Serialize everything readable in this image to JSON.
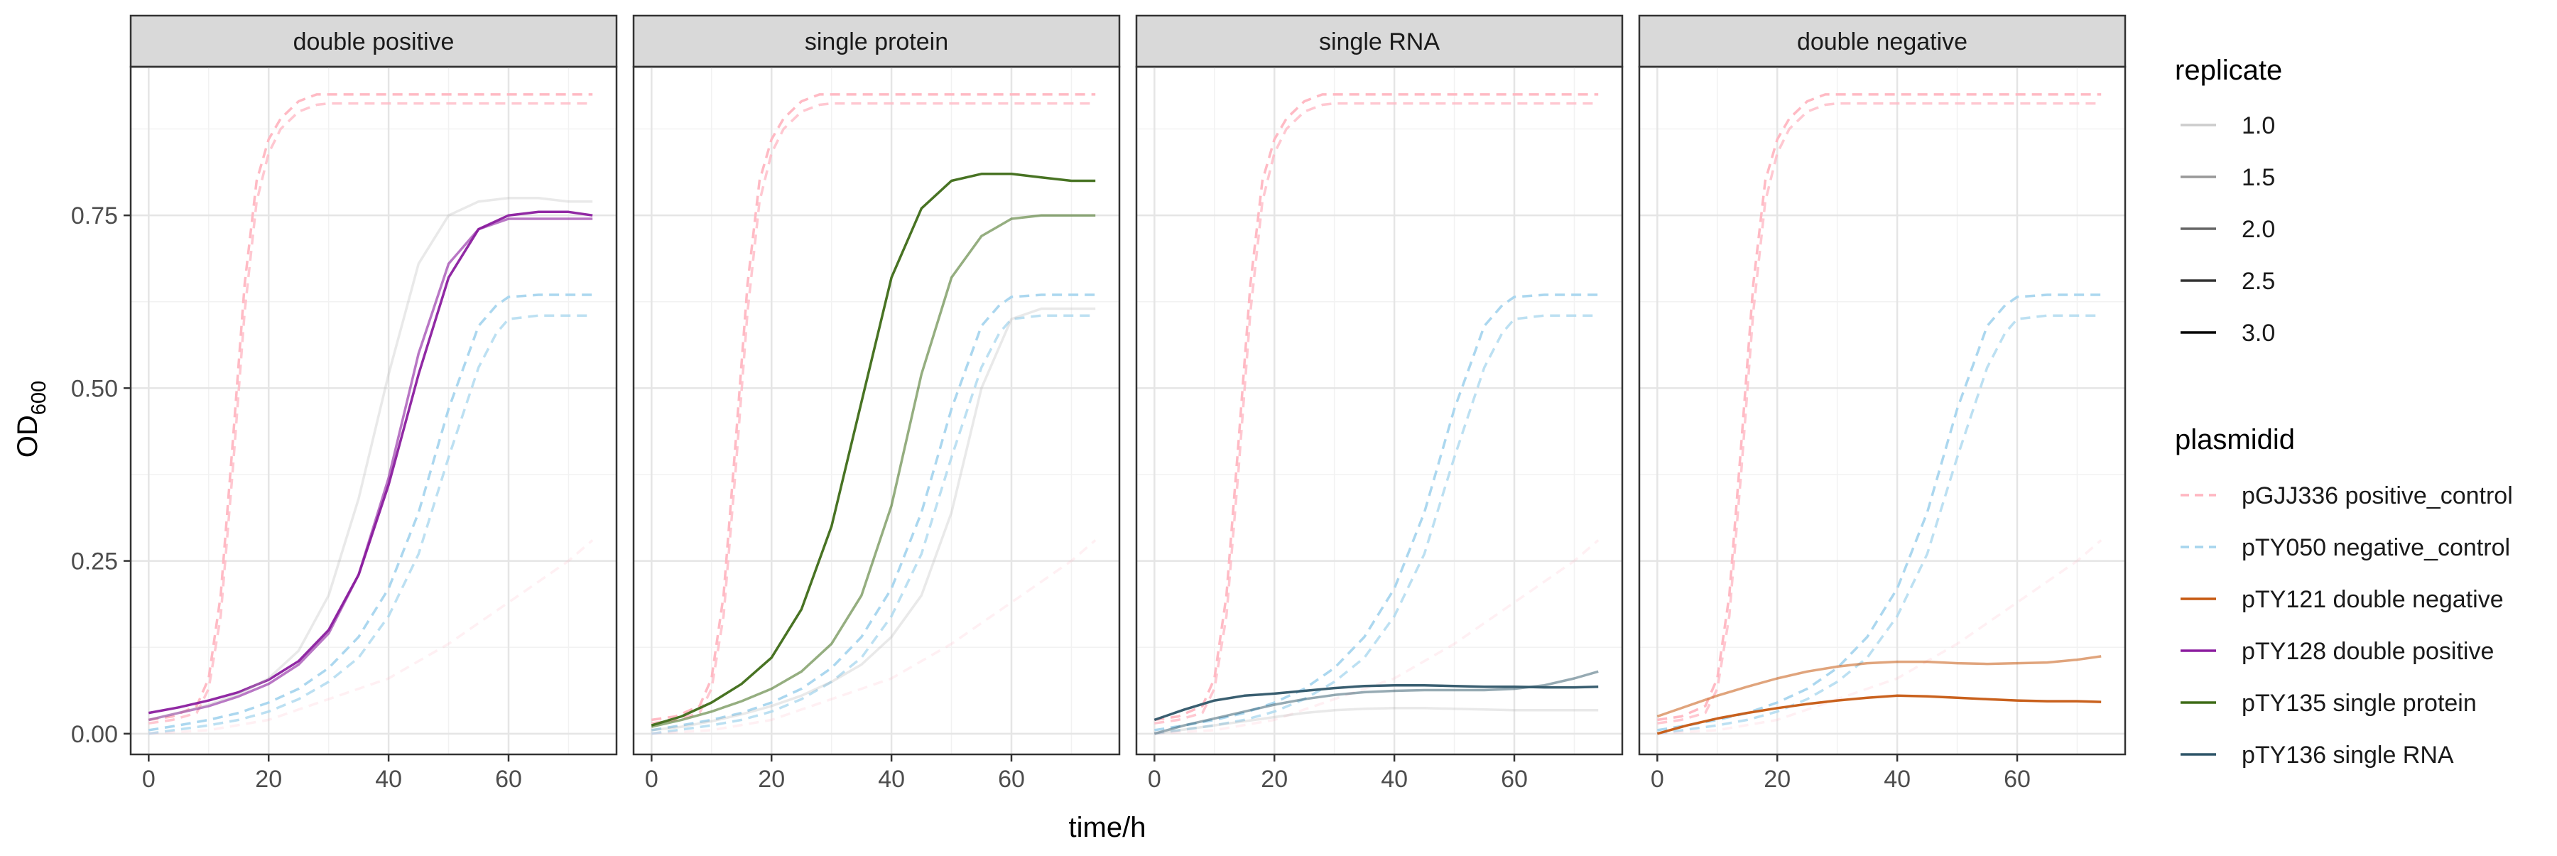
{
  "chart_data": {
    "type": "line",
    "xlabel": "time/h",
    "ylabel": "OD",
    "ylabel_subscript": "600",
    "xlim": [
      -3,
      78
    ],
    "ylim": [
      -0.03,
      0.965
    ],
    "x_ticks": [
      0,
      20,
      40,
      60
    ],
    "x_tick_labels": [
      "0",
      "20",
      "40",
      "60"
    ],
    "y_ticks": [
      0.0,
      0.25,
      0.5,
      0.75
    ],
    "y_tick_labels": [
      "0.00",
      "0.25",
      "0.50",
      "0.75"
    ],
    "grid": true,
    "legend_position": "right",
    "legends": [
      {
        "title": "replicate",
        "entries": [
          "1.0",
          "1.5",
          "2.0",
          "2.5",
          "3.0"
        ],
        "alphas": [
          0.2,
          0.4,
          0.6,
          0.8,
          1.0
        ]
      },
      {
        "title": "plasmidid",
        "entries": [
          {
            "label": "pGJJ336 positive_control",
            "color": "#FFB6C1",
            "dashed": true
          },
          {
            "label": "pTY050 negative_control",
            "color": "#A6D5EE",
            "dashed": true
          },
          {
            "label": "pTY121 double negative",
            "color": "#C65911",
            "dashed": false
          },
          {
            "label": "pTY128 double positive",
            "color": "#8B1D9F",
            "dashed": false
          },
          {
            "label": "pTY135 single protein",
            "color": "#3E6B17",
            "dashed": false
          },
          {
            "label": "pTY136 single RNA",
            "color": "#2E5568",
            "dashed": false
          }
        ]
      }
    ],
    "panels": [
      {
        "title": "double positive",
        "series": [
          {
            "name": "pTY128 double positive",
            "replicate": 3.0,
            "color": "#8B1D9F",
            "dash": false,
            "opacity": 0.95,
            "x": [
              0,
              5,
              10,
              15,
              20,
              25,
              30,
              35,
              40,
              45,
              50,
              55,
              60,
              65,
              70,
              74
            ],
            "y": [
              0.03,
              0.038,
              0.048,
              0.06,
              0.078,
              0.105,
              0.15,
              0.23,
              0.36,
              0.52,
              0.66,
              0.73,
              0.75,
              0.755,
              0.755,
              0.75
            ]
          },
          {
            "name": "pTY128 double positive",
            "replicate": 2.0,
            "color": "#8B1D9F",
            "dash": false,
            "opacity": 0.6,
            "x": [
              0,
              5,
              10,
              15,
              20,
              25,
              30,
              35,
              40,
              45,
              50,
              55,
              60,
              65,
              70,
              74
            ],
            "y": [
              0.02,
              0.03,
              0.04,
              0.054,
              0.072,
              0.1,
              0.145,
              0.23,
              0.37,
              0.55,
              0.68,
              0.73,
              0.745,
              0.745,
              0.745,
              0.745
            ]
          },
          {
            "name": "pTY128 double positive",
            "replicate": 1.0,
            "color": "#B5B5B5",
            "dash": false,
            "opacity": 0.3,
            "x": [
              0,
              5,
              10,
              15,
              20,
              25,
              30,
              35,
              40,
              45,
              50,
              55,
              60,
              65,
              70,
              74
            ],
            "y": [
              0.02,
              0.03,
              0.042,
              0.057,
              0.08,
              0.12,
              0.2,
              0.34,
              0.52,
              0.68,
              0.75,
              0.77,
              0.775,
              0.775,
              0.77,
              0.77
            ]
          }
        ]
      },
      {
        "title": "single protein",
        "series": [
          {
            "name": "pTY135 single protein",
            "replicate": 3.0,
            "color": "#3E6B17",
            "dash": false,
            "opacity": 0.95,
            "x": [
              0,
              5,
              10,
              15,
              20,
              25,
              30,
              35,
              40,
              45,
              50,
              55,
              60,
              65,
              70,
              74
            ],
            "y": [
              0.012,
              0.025,
              0.045,
              0.072,
              0.11,
              0.18,
              0.3,
              0.48,
              0.66,
              0.76,
              0.8,
              0.81,
              0.81,
              0.805,
              0.8,
              0.8
            ]
          },
          {
            "name": "pTY135 single protein",
            "replicate": 2.0,
            "color": "#3E6B17",
            "dash": false,
            "opacity": 0.55,
            "x": [
              0,
              5,
              10,
              15,
              20,
              25,
              30,
              35,
              40,
              45,
              50,
              55,
              60,
              65,
              70,
              74
            ],
            "y": [
              0.01,
              0.02,
              0.032,
              0.047,
              0.065,
              0.09,
              0.13,
              0.2,
              0.33,
              0.52,
              0.66,
              0.72,
              0.745,
              0.75,
              0.75,
              0.75
            ]
          },
          {
            "name": "pTY135 single protein",
            "replicate": 1.0,
            "color": "#B5B5B5",
            "dash": false,
            "opacity": 0.3,
            "x": [
              0,
              5,
              10,
              15,
              20,
              25,
              30,
              35,
              40,
              45,
              50,
              55,
              60,
              65,
              70,
              74
            ],
            "y": [
              0.005,
              0.01,
              0.018,
              0.028,
              0.04,
              0.055,
              0.075,
              0.1,
              0.14,
              0.2,
              0.32,
              0.5,
              0.6,
              0.615,
              0.615,
              0.615
            ]
          }
        ]
      },
      {
        "title": "single RNA",
        "series": [
          {
            "name": "pTY136 single RNA",
            "replicate": 3.0,
            "color": "#2E5568",
            "dash": false,
            "opacity": 0.95,
            "x": [
              0,
              5,
              10,
              15,
              20,
              25,
              30,
              35,
              40,
              45,
              50,
              55,
              60,
              65,
              70,
              74
            ],
            "y": [
              0.02,
              0.035,
              0.048,
              0.055,
              0.058,
              0.062,
              0.066,
              0.069,
              0.07,
              0.07,
              0.069,
              0.068,
              0.068,
              0.067,
              0.067,
              0.068
            ]
          },
          {
            "name": "pTY136 single RNA",
            "replicate": 2.0,
            "color": "#2E5568",
            "dash": false,
            "opacity": 0.5,
            "x": [
              0,
              5,
              10,
              15,
              20,
              25,
              30,
              35,
              40,
              45,
              50,
              55,
              60,
              65,
              70,
              74
            ],
            "y": [
              0.0,
              0.012,
              0.022,
              0.032,
              0.042,
              0.05,
              0.056,
              0.06,
              0.062,
              0.063,
              0.063,
              0.063,
              0.065,
              0.07,
              0.08,
              0.09
            ]
          },
          {
            "name": "pTY136 single RNA",
            "replicate": 1.0,
            "color": "#B5B5B5",
            "dash": false,
            "opacity": 0.3,
            "x": [
              0,
              5,
              10,
              15,
              20,
              25,
              30,
              35,
              40,
              45,
              50,
              55,
              60,
              65,
              70,
              74
            ],
            "y": [
              0.0,
              0.006,
              0.012,
              0.018,
              0.024,
              0.03,
              0.034,
              0.036,
              0.037,
              0.037,
              0.036,
              0.035,
              0.034,
              0.034,
              0.034,
              0.034
            ]
          }
        ]
      },
      {
        "title": "double negative",
        "series": [
          {
            "name": "pTY121 double negative",
            "replicate": 3.0,
            "color": "#C65911",
            "dash": false,
            "opacity": 0.95,
            "x": [
              0,
              5,
              10,
              15,
              20,
              25,
              30,
              35,
              40,
              45,
              50,
              55,
              60,
              65,
              70,
              74
            ],
            "y": [
              0.0,
              0.012,
              0.022,
              0.03,
              0.037,
              0.043,
              0.048,
              0.052,
              0.055,
              0.054,
              0.052,
              0.05,
              0.048,
              0.047,
              0.047,
              0.046
            ]
          },
          {
            "name": "pTY121 double negative",
            "replicate": 2.0,
            "color": "#C65911",
            "dash": false,
            "opacity": 0.55,
            "x": [
              0,
              5,
              10,
              15,
              20,
              25,
              30,
              35,
              40,
              45,
              50,
              55,
              60,
              65,
              70,
              74
            ],
            "y": [
              0.025,
              0.04,
              0.055,
              0.068,
              0.08,
              0.09,
              0.097,
              0.102,
              0.104,
              0.104,
              0.102,
              0.101,
              0.102,
              0.103,
              0.107,
              0.112
            ]
          }
        ]
      }
    ],
    "shared_series": [
      {
        "name": "pGJJ336 positive_control",
        "replicate": 3.0,
        "color": "#FFB6C1",
        "dash": true,
        "opacity": 0.95,
        "x": [
          0,
          4,
          8,
          10,
          12,
          14,
          16,
          18,
          20,
          22,
          25,
          28,
          30,
          35,
          40,
          50,
          60,
          70,
          74
        ],
        "y": [
          0.02,
          0.025,
          0.04,
          0.08,
          0.2,
          0.42,
          0.65,
          0.8,
          0.86,
          0.89,
          0.915,
          0.925,
          0.925,
          0.925,
          0.925,
          0.925,
          0.925,
          0.925,
          0.925
        ]
      },
      {
        "name": "pGJJ336 positive_control",
        "replicate": 2.0,
        "color": "#FFB6C1",
        "dash": true,
        "opacity": 0.75,
        "x": [
          0,
          4,
          8,
          10,
          12,
          14,
          16,
          18,
          20,
          22,
          25,
          28,
          30,
          35,
          40,
          50,
          60,
          70,
          74
        ],
        "y": [
          0.015,
          0.02,
          0.03,
          0.065,
          0.17,
          0.38,
          0.61,
          0.77,
          0.84,
          0.875,
          0.9,
          0.91,
          0.912,
          0.912,
          0.912,
          0.912,
          0.912,
          0.912,
          0.912
        ]
      },
      {
        "name": "pTY050 negative_control",
        "replicate": 3.0,
        "color": "#A6D5EE",
        "dash": true,
        "opacity": 0.95,
        "x": [
          0,
          5,
          10,
          15,
          20,
          25,
          30,
          35,
          40,
          45,
          50,
          55,
          58,
          60,
          65,
          70,
          74
        ],
        "y": [
          0.005,
          0.012,
          0.02,
          0.03,
          0.045,
          0.065,
          0.095,
          0.14,
          0.21,
          0.32,
          0.47,
          0.59,
          0.62,
          0.632,
          0.635,
          0.635,
          0.635
        ]
      },
      {
        "name": "pTY050 negative_control",
        "replicate": 2.0,
        "color": "#A6D5EE",
        "dash": true,
        "opacity": 0.75,
        "x": [
          0,
          5,
          10,
          15,
          20,
          25,
          30,
          35,
          40,
          45,
          50,
          55,
          58,
          60,
          65,
          70,
          74
        ],
        "y": [
          0.0,
          0.006,
          0.012,
          0.02,
          0.032,
          0.05,
          0.075,
          0.11,
          0.17,
          0.26,
          0.4,
          0.53,
          0.58,
          0.6,
          0.605,
          0.605,
          0.605
        ]
      },
      {
        "name": "pGJJ336 positive_control",
        "replicate": 1.0,
        "color": "#FFB6C1",
        "dash": true,
        "opacity": 0.2,
        "x": [
          0,
          10,
          20,
          30,
          40,
          50,
          60,
          70,
          74
        ],
        "y": [
          0.0,
          0.005,
          0.02,
          0.05,
          0.08,
          0.13,
          0.19,
          0.25,
          0.28
        ]
      }
    ]
  }
}
